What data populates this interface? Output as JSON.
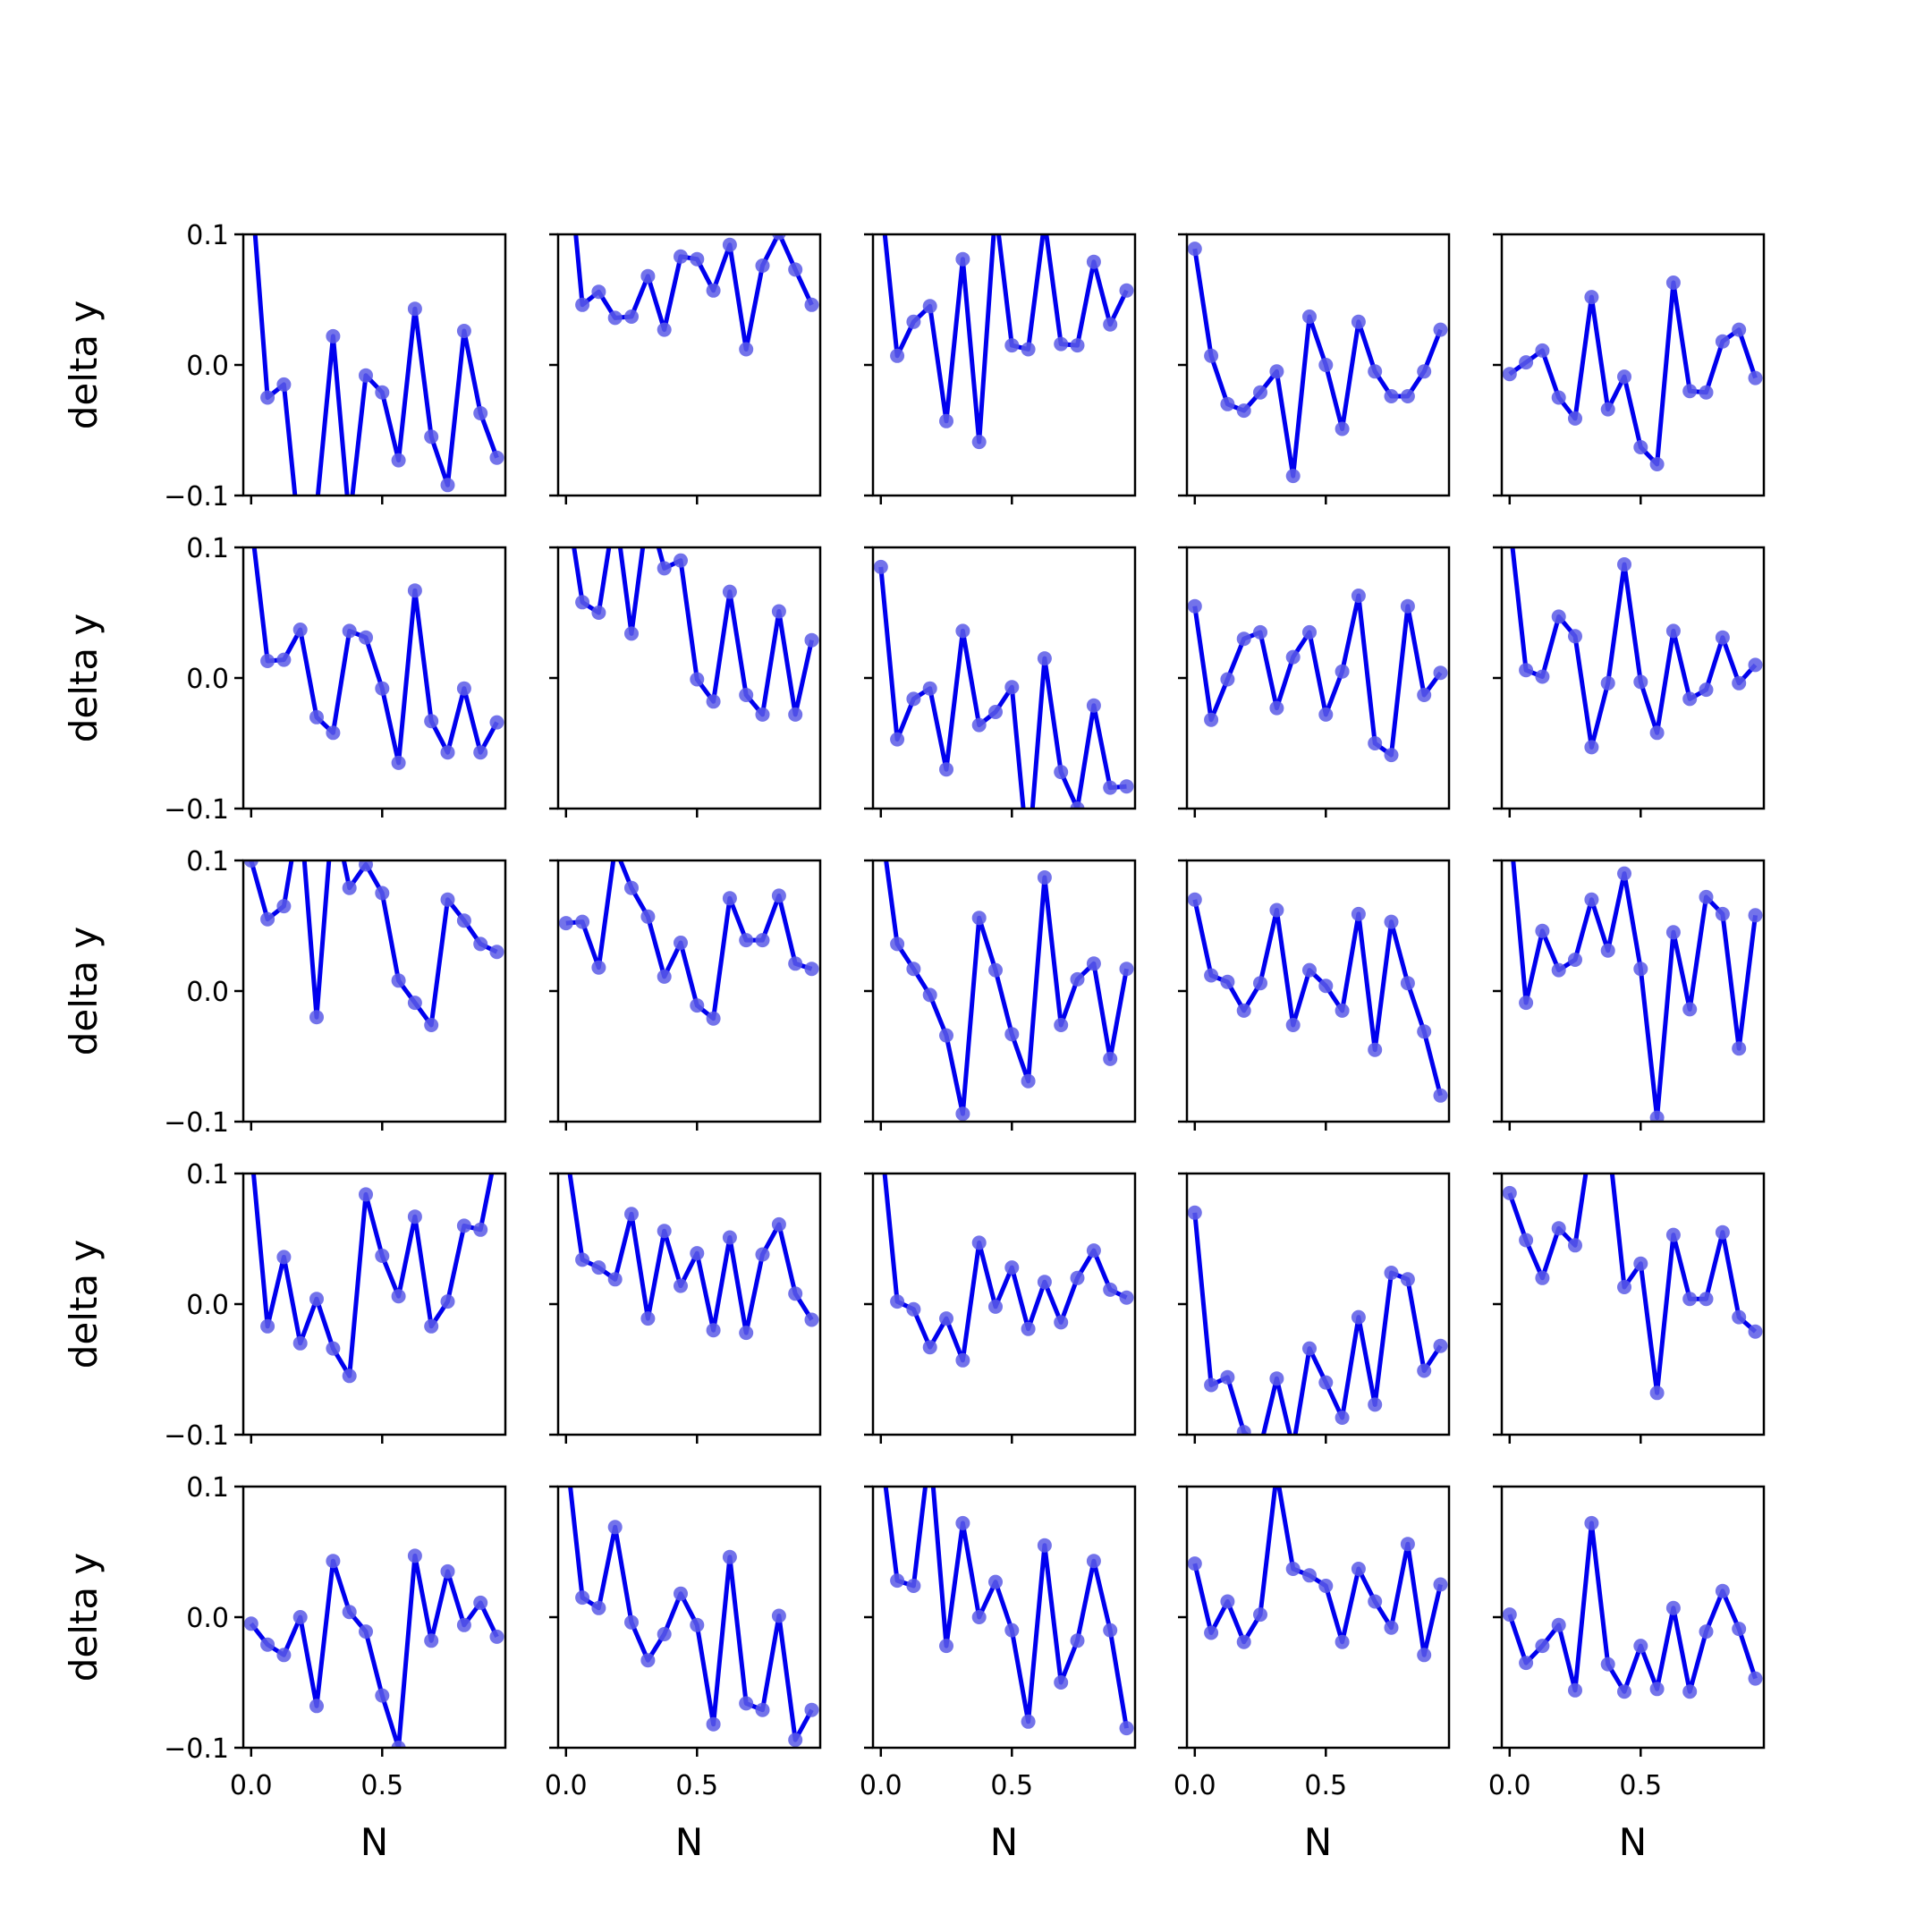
{
  "chart_data": {
    "type": "line",
    "layout": "5x5 grid of subplots, shared axes",
    "xlabel": "N",
    "ylabel": "delta y",
    "xlim": [
      -0.03,
      0.97
    ],
    "ylim": [
      -0.1,
      0.1
    ],
    "xticks": [
      0.0,
      0.5
    ],
    "xtick_labels": [
      "0.0",
      "0.5"
    ],
    "yticks": [
      0.1,
      0.0,
      -0.1
    ],
    "ytick_labels": [
      "0.1",
      "0.0",
      "−0.1"
    ],
    "grid": false,
    "legend": "none",
    "line_color": "#0000ee",
    "marker_color": "#5a5ae6",
    "x": [
      0.0,
      0.0625,
      0.125,
      0.1875,
      0.25,
      0.3125,
      0.375,
      0.4375,
      0.5,
      0.5625,
      0.625,
      0.6875,
      0.75,
      0.8125,
      0.875,
      0.9375
    ],
    "panels": [
      [
        [
          0.14,
          -0.025,
          -0.015,
          -0.14,
          -0.11,
          0.022,
          -0.12,
          -0.008,
          -0.021,
          -0.073,
          0.043,
          -0.055,
          -0.092,
          0.026,
          -0.037,
          -0.071
        ],
        [
          0.18,
          0.046,
          0.056,
          0.036,
          0.037,
          0.068,
          0.027,
          0.083,
          0.081,
          0.057,
          0.092,
          0.012,
          0.076,
          0.101,
          0.073,
          0.046
        ],
        [
          0.13,
          0.007,
          0.033,
          0.045,
          -0.043,
          0.081,
          -0.059,
          0.12,
          0.015,
          0.012,
          0.11,
          0.016,
          0.015,
          0.079,
          0.031,
          0.057
        ],
        [
          0.089,
          0.007,
          -0.03,
          -0.035,
          -0.021,
          -0.005,
          -0.085,
          0.037,
          0.0,
          -0.049,
          0.033,
          -0.005,
          -0.024,
          -0.024,
          -0.005,
          0.027
        ],
        [
          -0.007,
          0.002,
          0.011,
          -0.025,
          -0.041,
          0.052,
          -0.034,
          -0.009,
          -0.063,
          -0.076,
          0.063,
          -0.02,
          -0.021,
          0.018,
          0.027,
          -0.01
        ]
      ],
      [
        [
          0.12,
          0.013,
          0.014,
          0.037,
          -0.03,
          -0.042,
          0.036,
          0.031,
          -0.008,
          -0.065,
          0.067,
          -0.033,
          -0.057,
          -0.008,
          -0.057,
          -0.034
        ],
        [
          0.14,
          0.058,
          0.05,
          0.13,
          0.034,
          0.13,
          0.084,
          0.09,
          -0.001,
          -0.018,
          0.066,
          -0.013,
          -0.028,
          0.051,
          -0.028,
          0.029
        ],
        [
          0.085,
          -0.047,
          -0.016,
          -0.008,
          -0.07,
          0.036,
          -0.036,
          -0.026,
          -0.007,
          -0.14,
          0.015,
          -0.072,
          -0.1,
          -0.021,
          -0.084,
          -0.083
        ],
        [
          0.055,
          -0.032,
          -0.001,
          0.03,
          0.035,
          -0.023,
          0.016,
          0.035,
          -0.028,
          0.005,
          0.063,
          -0.05,
          -0.059,
          0.055,
          -0.013,
          0.004
        ],
        [
          0.12,
          0.006,
          0.001,
          0.047,
          0.032,
          -0.053,
          -0.004,
          0.087,
          -0.003,
          -0.042,
          0.036,
          -0.016,
          -0.009,
          0.031,
          -0.004,
          0.01
        ]
      ],
      [
        [
          0.1,
          0.055,
          0.065,
          0.14,
          -0.02,
          0.14,
          0.079,
          0.097,
          0.075,
          0.008,
          -0.009,
          -0.026,
          0.07,
          0.054,
          0.036,
          0.03
        ],
        [
          0.052,
          0.053,
          0.018,
          0.11,
          0.079,
          0.057,
          0.011,
          0.037,
          -0.011,
          -0.021,
          0.071,
          0.039,
          0.039,
          0.073,
          0.021,
          0.017
        ],
        [
          0.13,
          0.036,
          0.017,
          -0.003,
          -0.034,
          -0.094,
          0.056,
          0.016,
          -0.033,
          -0.069,
          0.087,
          -0.026,
          0.009,
          0.021,
          -0.052,
          0.017
        ],
        [
          0.07,
          0.012,
          0.007,
          -0.015,
          0.006,
          0.062,
          -0.026,
          0.016,
          0.004,
          -0.015,
          0.059,
          -0.045,
          0.053,
          0.006,
          -0.031,
          -0.08
        ],
        [
          0.13,
          -0.009,
          0.046,
          0.016,
          0.024,
          0.07,
          0.031,
          0.09,
          0.017,
          -0.097,
          0.045,
          -0.014,
          0.072,
          0.059,
          -0.044,
          0.058
        ]
      ],
      [
        [
          0.12,
          -0.017,
          0.036,
          -0.03,
          0.004,
          -0.034,
          -0.055,
          0.084,
          0.037,
          0.006,
          0.067,
          -0.017,
          0.002,
          0.06,
          0.057,
          0.12
        ],
        [
          0.12,
          0.034,
          0.028,
          0.019,
          0.069,
          -0.011,
          0.056,
          0.014,
          0.039,
          -0.02,
          0.051,
          -0.022,
          0.038,
          0.061,
          0.008,
          -0.012
        ],
        [
          0.13,
          0.002,
          -0.004,
          -0.033,
          -0.011,
          -0.043,
          0.047,
          -0.002,
          0.028,
          -0.019,
          0.017,
          -0.014,
          0.02,
          0.041,
          0.011,
          0.005
        ],
        [
          0.07,
          -0.062,
          -0.056,
          -0.098,
          -0.11,
          -0.057,
          -0.11,
          -0.034,
          -0.06,
          -0.087,
          -0.01,
          -0.077,
          0.024,
          0.019,
          -0.051,
          -0.032
        ],
        [
          0.085,
          0.049,
          0.02,
          0.058,
          0.045,
          0.13,
          0.13,
          0.013,
          0.031,
          -0.068,
          0.053,
          0.004,
          0.004,
          0.055,
          -0.01,
          -0.021
        ]
      ],
      [
        [
          -0.005,
          -0.021,
          -0.029,
          0.0,
          -0.068,
          0.043,
          0.004,
          -0.011,
          -0.06,
          -0.1,
          0.047,
          -0.018,
          0.035,
          -0.006,
          0.011,
          -0.015
        ],
        [
          0.13,
          0.015,
          0.007,
          0.069,
          -0.004,
          -0.033,
          -0.013,
          0.018,
          -0.006,
          -0.082,
          0.046,
          -0.066,
          -0.071,
          0.001,
          -0.094,
          -0.071
        ],
        [
          0.13,
          0.028,
          0.024,
          0.13,
          -0.022,
          0.072,
          0.0,
          0.027,
          -0.01,
          -0.08,
          0.055,
          -0.05,
          -0.018,
          0.043,
          -0.01,
          -0.085
        ],
        [
          0.041,
          -0.012,
          0.012,
          -0.019,
          0.002,
          0.11,
          0.037,
          0.032,
          0.024,
          -0.019,
          0.037,
          0.012,
          -0.008,
          0.056,
          -0.029,
          0.025
        ],
        [
          0.002,
          -0.035,
          -0.022,
          -0.006,
          -0.056,
          0.072,
          -0.036,
          -0.057,
          -0.022,
          -0.055,
          0.007,
          -0.057,
          -0.011,
          0.02,
          -0.009,
          -0.047
        ]
      ]
    ]
  }
}
